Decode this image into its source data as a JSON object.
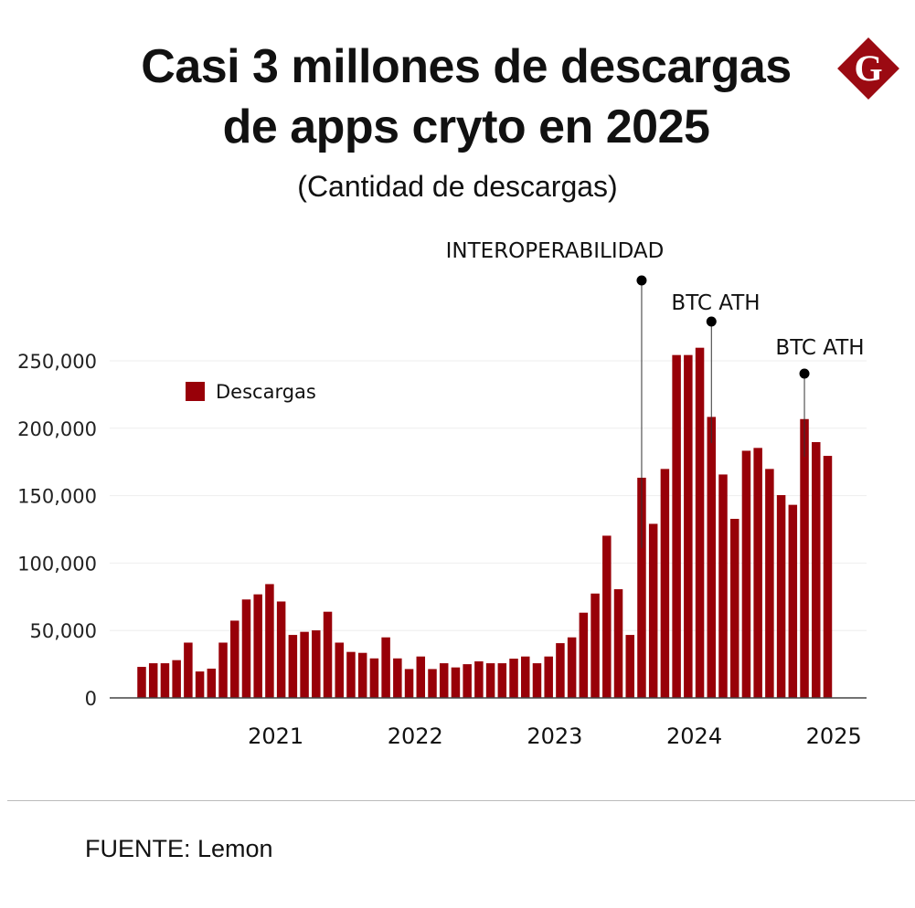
{
  "title_line1": "Casi 3 millones de descargas",
  "title_line2": "de apps cryto en 2025",
  "subtitle": "(Cantidad de descargas)",
  "logo_letter": "G",
  "source": "FUENTE: Lemon",
  "colors": {
    "bar": "#980008",
    "logo": "#9b0a12"
  },
  "chart_data": {
    "type": "bar",
    "title": "Casi 3 millones de descargas de apps cryto en 2025",
    "subtitle": "(Cantidad de descargas)",
    "xlabel": "",
    "ylabel": "",
    "ylim": [
      0,
      260000
    ],
    "yticks": [
      0,
      50000,
      100000,
      150000,
      200000,
      250000
    ],
    "ytick_labels": [
      "0",
      "50,000",
      "100,000",
      "150,000",
      "200,000",
      "250,000"
    ],
    "xticks": [
      {
        "label": "2021",
        "at": 12
      },
      {
        "label": "2022",
        "at": 24
      },
      {
        "label": "2023",
        "at": 36
      },
      {
        "label": "2024",
        "at": 48
      },
      {
        "label": "2025",
        "at": 60
      }
    ],
    "grid": true,
    "legend": {
      "position": "top-left",
      "entries": [
        "Descargas"
      ]
    },
    "series": [
      {
        "name": "Descargas",
        "values": [
          23000,
          25700,
          25700,
          28000,
          41000,
          19600,
          21700,
          41000,
          57300,
          73000,
          76800,
          84400,
          71500,
          46700,
          49000,
          50100,
          63900,
          41000,
          34100,
          33400,
          29300,
          44900,
          29300,
          21400,
          30700,
          21400,
          25700,
          22600,
          25000,
          27100,
          25700,
          25700,
          29100,
          30700,
          25700,
          30700,
          40600,
          44900,
          63200,
          77400,
          120300,
          80600,
          46700,
          163300,
          129100,
          169800,
          254300,
          254300,
          259700,
          208400,
          165700,
          132800,
          183300,
          185400,
          169800,
          150400,
          143200,
          206800,
          189700,
          179500
        ]
      }
    ],
    "annotations": [
      {
        "label": "INTEROPERABILIDAD",
        "bar_index": 43
      },
      {
        "label": "BTC ATH",
        "bar_index": 49
      },
      {
        "label": "BTC ATH",
        "bar_index": 57
      }
    ]
  }
}
